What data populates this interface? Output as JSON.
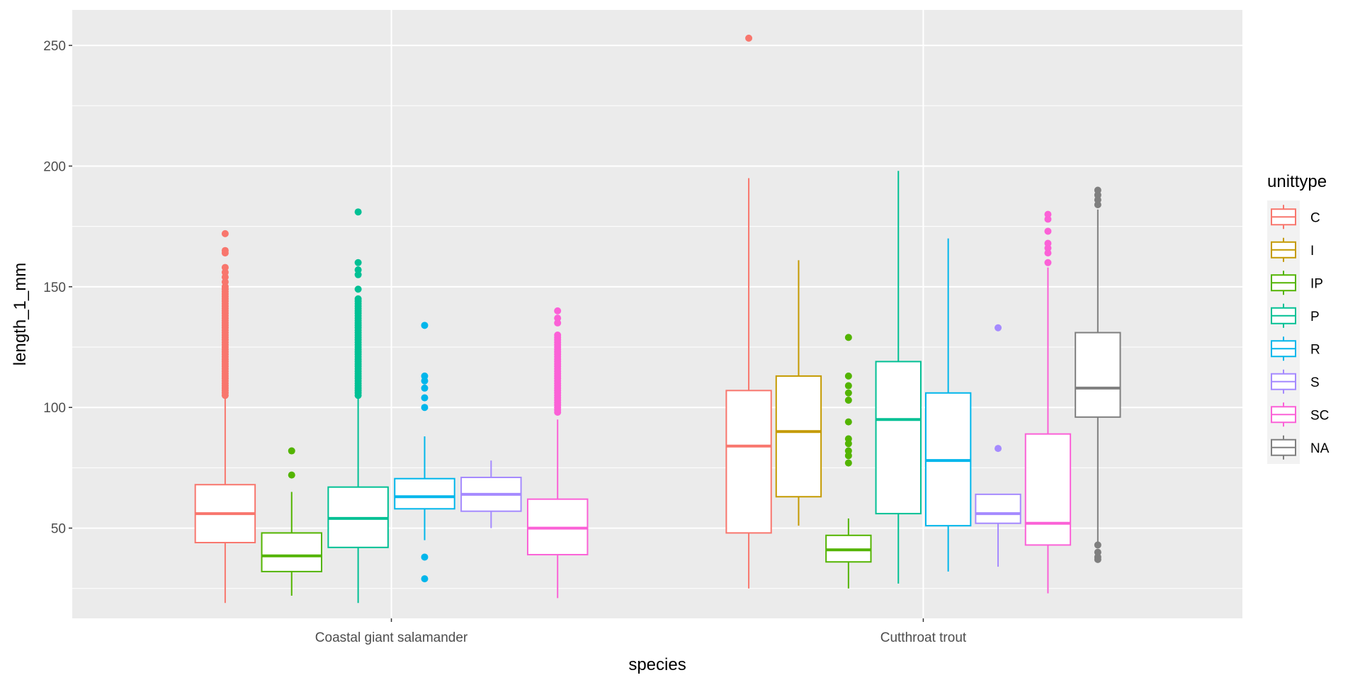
{
  "chart_data": {
    "type": "boxplot",
    "xlabel": "species",
    "ylabel": "length_1_mm",
    "ylim": [
      12.6,
      264.7
    ],
    "yticks": [
      50,
      100,
      150,
      200,
      250
    ],
    "y_minor_gridlines": [
      25,
      75,
      125,
      175,
      225
    ],
    "grid": true,
    "legend": {
      "title": "unittype",
      "position": "right",
      "entries": [
        {
          "label": "C",
          "color": "#F8766D"
        },
        {
          "label": "I",
          "color": "#C49A00"
        },
        {
          "label": "IP",
          "color": "#53B400"
        },
        {
          "label": "P",
          "color": "#00C094"
        },
        {
          "label": "R",
          "color": "#00B6EB"
        },
        {
          "label": "S",
          "color": "#A58AFF"
        },
        {
          "label": "SC",
          "color": "#FB61D7"
        },
        {
          "label": "NA",
          "color": "#7F7F7F"
        }
      ]
    },
    "categories": [
      "Coastal giant salamander",
      "Cutthroat trout"
    ],
    "groups": [
      {
        "category": "Coastal giant salamander",
        "boxes": [
          {
            "unittype": "C",
            "lower": 19,
            "q1": 44,
            "median": 56,
            "q3": 68,
            "upper": 104,
            "outliers": [
              105,
              106,
              107,
              108,
              109,
              110,
              111,
              112,
              113,
              114,
              115,
              116,
              117,
              118,
              119,
              120,
              121,
              122,
              123,
              124,
              125,
              126,
              127,
              128,
              129,
              130,
              131,
              132,
              133,
              134,
              135,
              136,
              137,
              138,
              139,
              140,
              141,
              142,
              143,
              144,
              145,
              146,
              147,
              148,
              149,
              150,
              152,
              154,
              156,
              158,
              164,
              165,
              172
            ]
          },
          {
            "unittype": "IP",
            "lower": 22,
            "q1": 32,
            "median": 38.5,
            "q3": 48,
            "upper": 65,
            "outliers": [
              72,
              82
            ]
          },
          {
            "unittype": "P",
            "lower": 19,
            "q1": 42,
            "median": 54,
            "q3": 67,
            "upper": 104,
            "outliers": [
              105,
              106,
              107,
              108,
              109,
              110,
              111,
              112,
              113,
              114,
              115,
              116,
              117,
              118,
              119,
              120,
              121,
              122,
              123,
              124,
              125,
              126,
              127,
              128,
              129,
              130,
              131,
              132,
              133,
              134,
              135,
              136,
              137,
              138,
              139,
              140,
              141,
              142,
              143,
              144,
              145,
              149,
              155,
              157,
              160,
              181
            ]
          },
          {
            "unittype": "R",
            "lower": 45,
            "q1": 58,
            "median": 63,
            "q3": 70.5,
            "upper": 88,
            "outliers": [
              29,
              38,
              100,
              104,
              108,
              111,
              113,
              134
            ]
          },
          {
            "unittype": "S",
            "lower": 50,
            "q1": 57,
            "median": 64,
            "q3": 71,
            "upper": 78,
            "outliers": []
          },
          {
            "unittype": "SC",
            "lower": 21,
            "q1": 39,
            "median": 50,
            "q3": 62,
            "upper": 95,
            "outliers": [
              98,
              99,
              100,
              101,
              102,
              103,
              104,
              105,
              106,
              107,
              108,
              109,
              110,
              111,
              112,
              113,
              114,
              115,
              116,
              117,
              118,
              119,
              120,
              121,
              122,
              123,
              124,
              125,
              126,
              127,
              128,
              129,
              130,
              135,
              137,
              140
            ]
          }
        ]
      },
      {
        "category": "Cutthroat trout",
        "boxes": [
          {
            "unittype": "C",
            "lower": 25,
            "q1": 48,
            "median": 84,
            "q3": 107,
            "upper": 195,
            "outliers": [
              253
            ]
          },
          {
            "unittype": "I",
            "lower": 51,
            "q1": 63,
            "median": 90,
            "q3": 113,
            "upper": 161,
            "outliers": []
          },
          {
            "unittype": "IP",
            "lower": 25,
            "q1": 36,
            "median": 41,
            "q3": 47,
            "upper": 54,
            "outliers": [
              77,
              80,
              82,
              85,
              87,
              94,
              103,
              106,
              109,
              113,
              129
            ]
          },
          {
            "unittype": "P",
            "lower": 27,
            "q1": 56,
            "median": 95,
            "q3": 119,
            "upper": 198,
            "outliers": []
          },
          {
            "unittype": "R",
            "lower": 32,
            "q1": 51,
            "median": 78,
            "q3": 106,
            "upper": 170,
            "outliers": []
          },
          {
            "unittype": "S",
            "lower": 34,
            "q1": 52,
            "median": 56,
            "q3": 64,
            "upper": 64,
            "outliers": [
              83,
              133
            ]
          },
          {
            "unittype": "SC",
            "lower": 23,
            "q1": 43,
            "median": 52,
            "q3": 89,
            "upper": 158,
            "outliers": [
              160,
              164,
              166,
              168,
              173,
              178,
              180
            ]
          },
          {
            "unittype": "NA",
            "lower": 44,
            "q1": 96,
            "median": 108,
            "q3": 131,
            "upper": 182,
            "outliers": [
              37,
              38,
              40,
              43,
              184,
              186,
              188,
              190
            ]
          }
        ]
      }
    ]
  }
}
